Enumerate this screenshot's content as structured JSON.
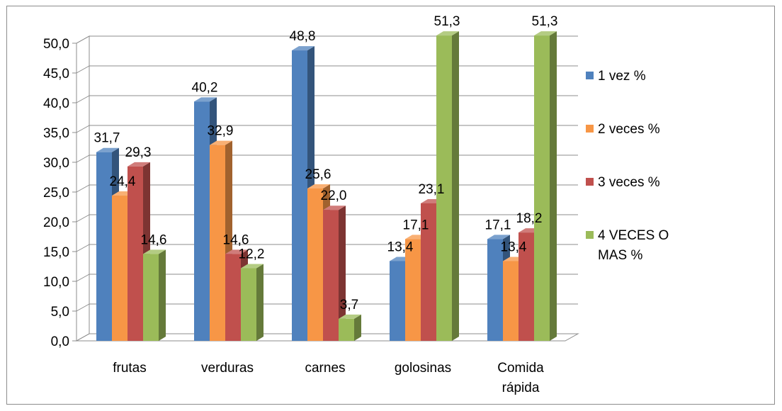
{
  "chart_data": {
    "type": "bar",
    "title": "",
    "xlabel": "",
    "ylabel": "",
    "ylim": [
      0,
      50
    ],
    "yticks": [
      "0,0",
      "5,0",
      "10,0",
      "15,0",
      "20,0",
      "25,0",
      "30,0",
      "35,0",
      "40,0",
      "45,0",
      "50,0"
    ],
    "grid": true,
    "legend_position": "right",
    "categories": [
      [
        "frutas"
      ],
      [
        "verduras"
      ],
      [
        "carnes"
      ],
      [
        "golosinas"
      ],
      [
        "Comida",
        "rápida"
      ]
    ],
    "series": [
      {
        "name": [
          "1 vez %"
        ],
        "values": [
          31.7,
          40.2,
          48.8,
          13.4,
          17.1
        ],
        "labels": [
          "31,7",
          "40,2",
          "48,8",
          "13,4",
          "17,1"
        ],
        "color": "#4f81bd"
      },
      {
        "name": [
          "2 veces %"
        ],
        "values": [
          24.4,
          32.9,
          25.6,
          17.1,
          13.4
        ],
        "labels": [
          "24,4",
          "32,9",
          "25,6",
          "17,1",
          "13,4"
        ],
        "color": "#f79646"
      },
      {
        "name": [
          "3 veces %"
        ],
        "values": [
          29.3,
          14.6,
          22.0,
          23.1,
          18.2
        ],
        "labels": [
          "29,3",
          "14,6",
          "22,0",
          "23,1",
          "18,2"
        ],
        "color": "#c0504d"
      },
      {
        "name": [
          "4 VECES O",
          "MAS %"
        ],
        "values": [
          14.6,
          12.2,
          3.7,
          51.3,
          51.3
        ],
        "labels": [
          "14,6",
          "12,2",
          "3,7",
          "51,3",
          "51,3"
        ],
        "color": "#9bbb59"
      }
    ]
  }
}
